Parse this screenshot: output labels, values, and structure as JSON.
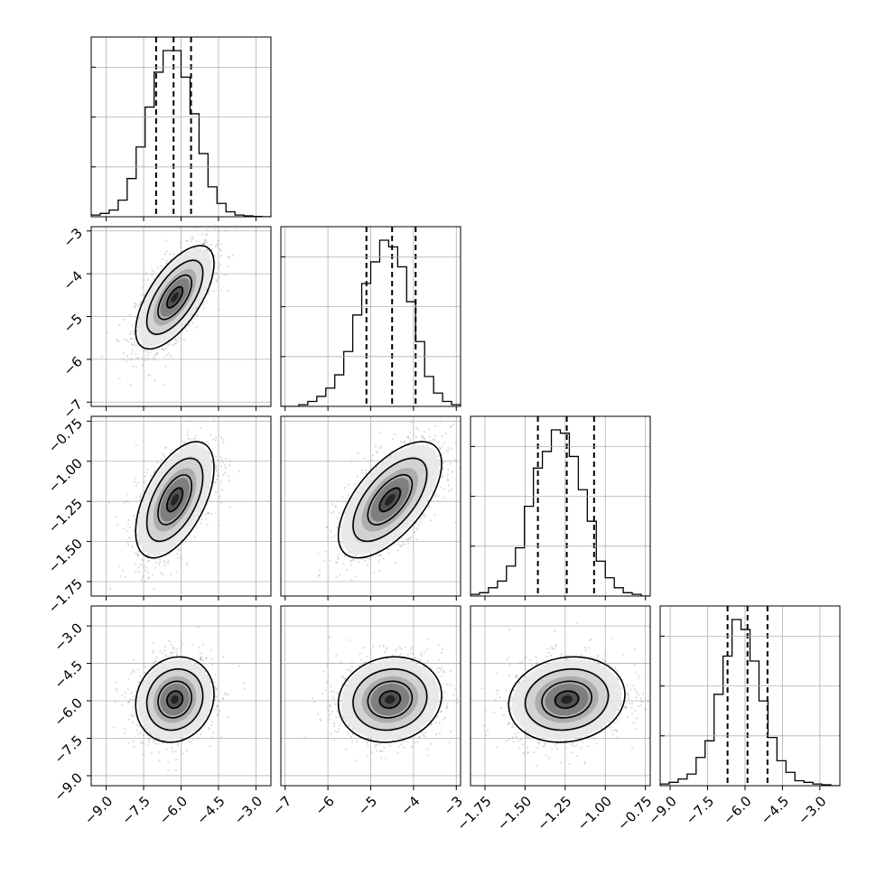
{
  "chart_data": {
    "type": "corner",
    "parameters": 4,
    "title": "",
    "axis_labels": [
      "",
      "",
      "",
      ""
    ],
    "grid": true,
    "colors": {
      "line": "#000000",
      "grid": "#b0b0b0",
      "points": "#9a9a9a"
    },
    "ranges": [
      [
        -9.6,
        -2.4
      ],
      [
        -7.1,
        -2.9
      ],
      [
        -1.84,
        -0.72
      ],
      [
        -9.4,
        -2.2
      ]
    ],
    "ticks": [
      {
        "values": [
          -9.0,
          -7.5,
          -6.0,
          -4.5,
          -3.0
        ],
        "labels": [
          "−9.0",
          "−7.5",
          "−6.0",
          "−4.5",
          "−3.0"
        ]
      },
      {
        "values": [
          -7,
          -6,
          -5,
          -4,
          -3
        ],
        "labels": [
          "−7",
          "−6",
          "−5",
          "−4",
          "−3"
        ]
      },
      {
        "values": [
          -1.75,
          -1.5,
          -1.25,
          -1.0,
          -0.75
        ],
        "labels": [
          "−1.75",
          "−1.50",
          "−1.25",
          "−1.00",
          "−0.75"
        ]
      },
      {
        "values": [
          -9.0,
          -7.5,
          -6.0,
          -4.5,
          -3.0
        ],
        "labels": [
          "−9.0",
          "−7.5",
          "−6.0",
          "−4.5",
          "−3.0"
        ]
      }
    ],
    "quantiles": [
      [
        -7.0,
        -6.3,
        -5.6
      ],
      [
        -5.1,
        -4.5,
        -3.95
      ],
      [
        -1.42,
        -1.24,
        -1.07
      ],
      [
        -6.7,
        -5.9,
        -5.1
      ]
    ],
    "histograms": [
      {
        "edges": [
          -9.6,
          -2.4
        ],
        "bins": 20,
        "counts": [
          1,
          2,
          4,
          10,
          23,
          42,
          66,
          87,
          100,
          100,
          84,
          62,
          38,
          18,
          8,
          3,
          1,
          0.5,
          0.2,
          0
        ]
      },
      {
        "edges": [
          -7.1,
          -2.9
        ],
        "bins": 20,
        "counts": [
          0,
          0,
          1,
          3,
          6,
          11,
          19,
          33,
          55,
          74,
          87,
          100,
          96,
          84,
          63,
          39,
          18,
          8,
          3,
          1
        ]
      },
      {
        "edges": [
          -1.84,
          -0.72
        ],
        "bins": 20,
        "counts": [
          1,
          2,
          5,
          9,
          18,
          29,
          54,
          77,
          87,
          100,
          98,
          84,
          64,
          45,
          21,
          11,
          5,
          2,
          1,
          0
        ]
      },
      {
        "edges": [
          -9.4,
          -2.2
        ],
        "bins": 20,
        "counts": [
          1,
          2,
          4,
          7,
          17,
          27,
          55,
          78,
          100,
          94,
          75,
          51,
          29,
          15,
          8,
          3,
          2,
          1,
          0.5,
          0
        ]
      }
    ],
    "scatter": {
      "means": [
        -6.25,
        -4.55,
        -1.24,
        -5.95
      ],
      "stds": [
        0.78,
        0.6,
        0.18,
        0.85
      ],
      "correlations": [
        [
          1.0,
          0.65,
          0.55,
          0.12
        ],
        [
          0.65,
          1.0,
          0.62,
          0.1
        ],
        [
          0.55,
          0.62,
          1.0,
          0.12
        ],
        [
          0.12,
          0.1,
          0.12,
          1.0
        ]
      ],
      "contour_sigma_levels": [
        0.5,
        1.0,
        1.5,
        2.0
      ]
    }
  }
}
